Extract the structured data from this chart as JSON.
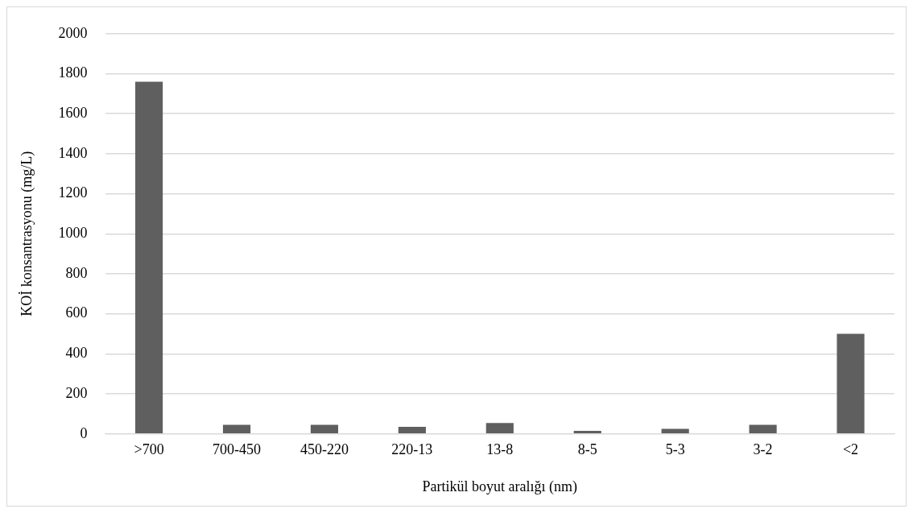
{
  "chart_data": {
    "type": "bar",
    "xlabel": "Partikül boyut aralığı (nm)",
    "ylabel": "KOİ konsantrasyonu (mg/L)",
    "categories": [
      ">700",
      "700-450",
      "450-220",
      "220-13",
      "13-8",
      "8-5",
      "5-3",
      "3-2",
      "<2"
    ],
    "values": [
      1760,
      45,
      45,
      35,
      55,
      15,
      25,
      45,
      500
    ],
    "color": "#5f5f5f",
    "ylim": [
      0,
      2000
    ],
    "yticks": [
      0,
      200,
      400,
      600,
      800,
      1000,
      1200,
      1400,
      1600,
      1800,
      2000
    ],
    "grid": "y"
  }
}
